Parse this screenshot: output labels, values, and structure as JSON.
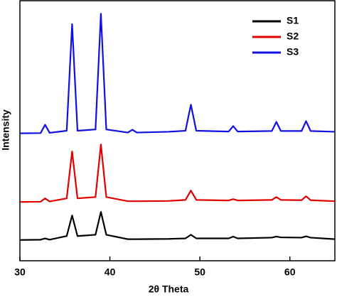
{
  "chart_data": {
    "type": "line",
    "x_label": "2θ Theta",
    "y_label": "Intensity",
    "xlim": [
      30,
      65
    ],
    "xticks": [
      30,
      40,
      50,
      60
    ],
    "ylim": [
      0,
      100
    ],
    "legend": "top-right",
    "x": [
      30,
      32.3,
      32.8,
      33.3,
      35.2,
      35.8,
      36.4,
      38.4,
      39,
      39.6,
      42,
      42.5,
      43,
      46.5,
      48.4,
      49,
      49.6,
      53.2,
      53.7,
      54.2,
      58,
      58.5,
      59,
      61.3,
      61.8,
      62.3,
      65
    ],
    "series": [
      {
        "name": "S1",
        "color": "#000000",
        "values": [
          8,
          8.1,
          8.6,
          8.1,
          9.5,
          17.4,
          9.5,
          10,
          18.8,
          10,
          8.3,
          8.3,
          8.3,
          8.4,
          8.6,
          10,
          8.6,
          8.6,
          9.3,
          8.6,
          8.9,
          9.3,
          9,
          8.9,
          9.4,
          8.9,
          8.3
        ]
      },
      {
        "name": "S2",
        "color": "#e00000",
        "values": [
          22.6,
          22.7,
          24,
          22.8,
          24,
          42,
          24,
          24.5,
          44.7,
          24.5,
          22.9,
          22.9,
          22.9,
          23,
          23.4,
          27,
          23.4,
          23.2,
          23.7,
          23.2,
          23.4,
          24.5,
          23.4,
          23.3,
          24.8,
          23.3,
          22.9
        ]
      },
      {
        "name": "S3",
        "color": "#1010e0",
        "values": [
          49,
          49.1,
          52.3,
          49.2,
          50,
          91,
          50,
          50.5,
          95,
          50.5,
          49.3,
          50.4,
          49.3,
          49.6,
          50,
          60,
          50,
          49.7,
          51.8,
          49.7,
          49.9,
          53.4,
          49.9,
          49.9,
          53.7,
          49.9,
          49.6
        ]
      }
    ]
  }
}
